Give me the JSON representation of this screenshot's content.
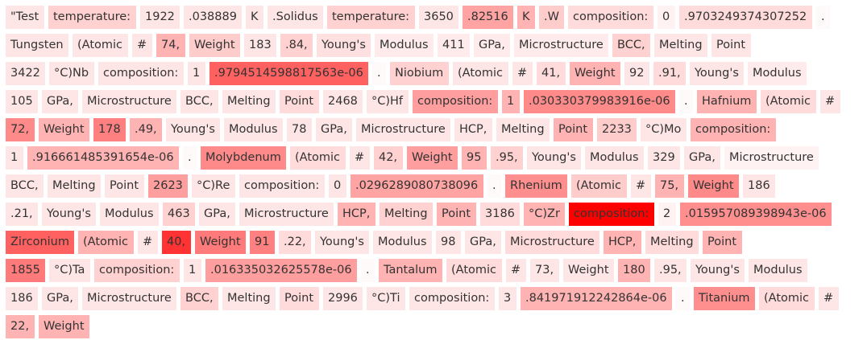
{
  "palette": {
    "highlight": "#ff0000",
    "text": "#333333",
    "background": "#ffffff"
  },
  "tokens": [
    [
      "\"Test",
      0.1
    ],
    [
      "temperature:",
      0.18
    ],
    [
      "1922",
      0.1
    ],
    [
      ".038889",
      0.1
    ],
    [
      "K",
      0.1
    ],
    [
      ".Solidus",
      0.1
    ],
    [
      "temperature:",
      0.18
    ],
    [
      "3650",
      0.1
    ],
    [
      ".82516",
      0.36
    ],
    [
      "K",
      0.3
    ],
    [
      ".W",
      0.2
    ],
    [
      "composition:",
      0.14
    ],
    [
      "0",
      0.05
    ],
    [
      ".9703249374307252",
      0.14
    ],
    [
      ".",
      0.02
    ],
    [
      "Tungsten",
      0.1
    ],
    [
      "(Atomic",
      0.1
    ],
    [
      "#",
      0.1
    ],
    [
      "74,",
      0.3
    ],
    [
      "Weight",
      0.2
    ],
    [
      "183",
      0.1
    ],
    [
      ".84,",
      0.18
    ],
    [
      "Young's",
      0.12
    ],
    [
      "Modulus",
      0.08
    ],
    [
      "411",
      0.08
    ],
    [
      "GPa,",
      0.08
    ],
    [
      "Microstructure",
      0.08
    ],
    [
      "BCC,",
      0.18
    ],
    [
      "Melting",
      0.1
    ],
    [
      "Point",
      0.1
    ],
    [
      "3422",
      0.1
    ],
    [
      "°C)Nb",
      0.1
    ],
    [
      "composition:",
      0.1
    ],
    [
      "1",
      0.1
    ],
    [
      ".9794514598817563e-06",
      0.62
    ],
    [
      ".",
      0.02
    ],
    [
      "Niobium",
      0.18
    ],
    [
      "(Atomic",
      0.1
    ],
    [
      "#",
      0.1
    ],
    [
      "41,",
      0.14
    ],
    [
      "Weight",
      0.3
    ],
    [
      "92",
      0.1
    ],
    [
      ".91,",
      0.14
    ],
    [
      "Young's",
      0.1
    ],
    [
      "Modulus",
      0.08
    ],
    [
      "105",
      0.1
    ],
    [
      "GPa,",
      0.1
    ],
    [
      "Microstructure",
      0.1
    ],
    [
      "BCC,",
      0.1
    ],
    [
      "Melting",
      0.1
    ],
    [
      "Point",
      0.14
    ],
    [
      "2468",
      0.1
    ],
    [
      "°C)Hf",
      0.1
    ],
    [
      "composition:",
      0.38
    ],
    [
      "1",
      0.3
    ],
    [
      ".030330379983916e-06",
      0.46
    ],
    [
      ".",
      0.02
    ],
    [
      "Hafnium",
      0.3
    ],
    [
      "(Atomic",
      0.14
    ],
    [
      "#",
      0.1
    ],
    [
      "72,",
      0.46
    ],
    [
      "Weight",
      0.3
    ],
    [
      "178",
      0.5
    ],
    [
      ".49,",
      0.3
    ],
    [
      "Young's",
      0.1
    ],
    [
      "Modulus",
      0.1
    ],
    [
      "78",
      0.1
    ],
    [
      "GPa,",
      0.1
    ],
    [
      "Microstructure",
      0.1
    ],
    [
      "HCP,",
      0.1
    ],
    [
      "Melting",
      0.1
    ],
    [
      "Point",
      0.3
    ],
    [
      "2233",
      0.2
    ],
    [
      "°C)Mo",
      0.1
    ],
    [
      "composition:",
      0.3
    ],
    [
      "1",
      0.1
    ],
    [
      ".916661485391654e-06",
      0.3
    ],
    [
      ".",
      0.02
    ],
    [
      "Molybdenum",
      0.46
    ],
    [
      "(Atomic",
      0.14
    ],
    [
      "#",
      0.1
    ],
    [
      "42,",
      0.18
    ],
    [
      "Weight",
      0.38
    ],
    [
      "95",
      0.3
    ],
    [
      ".95,",
      0.18
    ],
    [
      "Young's",
      0.1
    ],
    [
      "Modulus",
      0.1
    ],
    [
      "329",
      0.1
    ],
    [
      "GPa,",
      0.1
    ],
    [
      "Microstructure",
      0.05
    ],
    [
      "BCC,",
      0.1
    ],
    [
      "Melting",
      0.1
    ],
    [
      "Point",
      0.1
    ],
    [
      "2623",
      0.38
    ],
    [
      "°C)Re",
      0.1
    ],
    [
      "composition:",
      0.1
    ],
    [
      "0",
      0.1
    ],
    [
      ".0296289080738096",
      0.36
    ],
    [
      ".",
      0.02
    ],
    [
      "Rhenium",
      0.44
    ],
    [
      "(Atomic",
      0.2
    ],
    [
      "#",
      0.1
    ],
    [
      "75,",
      0.3
    ],
    [
      "Weight",
      0.46
    ],
    [
      "186",
      0.1
    ],
    [
      ".21,",
      0.1
    ],
    [
      "Young's",
      0.1
    ],
    [
      "Modulus",
      0.1
    ],
    [
      "463",
      0.18
    ],
    [
      "GPa,",
      0.1
    ],
    [
      "Microstructure",
      0.1
    ],
    [
      "HCP,",
      0.3
    ],
    [
      "Melting",
      0.18
    ],
    [
      "Point",
      0.3
    ],
    [
      "3186",
      0.14
    ],
    [
      "°C)Zr",
      0.3
    ],
    [
      "composition:",
      1.0
    ],
    [
      "2",
      0.05
    ],
    [
      ".015957089398943e-06",
      0.44
    ],
    [
      "Zirconium",
      0.62
    ],
    [
      "(Atomic",
      0.3
    ],
    [
      "#",
      0.1
    ],
    [
      "40,",
      0.8
    ],
    [
      "Weight",
      0.52
    ],
    [
      "91",
      0.5
    ],
    [
      ".22,",
      0.14
    ],
    [
      "Young's",
      0.1
    ],
    [
      "Modulus",
      0.1
    ],
    [
      "98",
      0.1
    ],
    [
      "GPa,",
      0.1
    ],
    [
      "Microstructure",
      0.14
    ],
    [
      "HCP,",
      0.3
    ],
    [
      "Melting",
      0.14
    ],
    [
      "Point",
      0.3
    ],
    [
      "1855",
      0.52
    ],
    [
      "°C)Ta",
      0.1
    ],
    [
      "composition:",
      0.18
    ],
    [
      "1",
      0.1
    ],
    [
      ".016335032625578e-06",
      0.38
    ],
    [
      ".",
      0.02
    ],
    [
      "Tantalum",
      0.3
    ],
    [
      "(Atomic",
      0.14
    ],
    [
      "#",
      0.1
    ],
    [
      "73,",
      0.1
    ],
    [
      "Weight",
      0.1
    ],
    [
      "180",
      0.3
    ],
    [
      ".95,",
      0.1
    ],
    [
      "Young's",
      0.1
    ],
    [
      "Modulus",
      0.1
    ],
    [
      "186",
      0.1
    ],
    [
      "GPa,",
      0.1
    ],
    [
      "Microstructure",
      0.1
    ],
    [
      "BCC,",
      0.18
    ],
    [
      "Melting",
      0.1
    ],
    [
      "Point",
      0.14
    ],
    [
      "2996",
      0.1
    ],
    [
      "°C)Ti",
      0.1
    ],
    [
      "composition:",
      0.1
    ],
    [
      "3",
      0.1
    ],
    [
      ".841971912242864e-06",
      0.3
    ],
    [
      ".",
      0.02
    ],
    [
      "Titanium",
      0.44
    ],
    [
      "(Atomic",
      0.14
    ],
    [
      "#",
      0.1
    ],
    [
      "22,",
      0.3
    ],
    [
      "Weight",
      0.3
    ]
  ]
}
